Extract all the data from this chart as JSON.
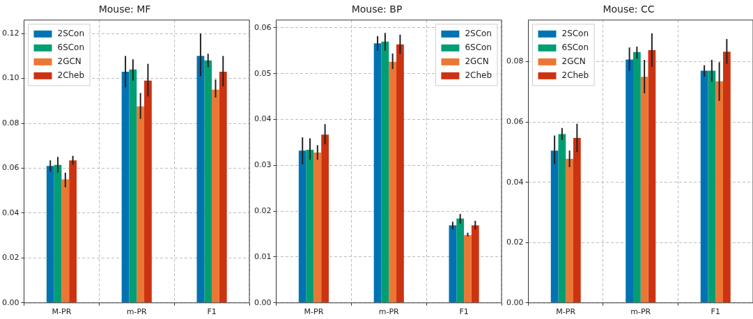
{
  "chart_data": [
    {
      "type": "bar",
      "title": "Mouse: MF",
      "categories": [
        "M-PR",
        "m-PR",
        "F1"
      ],
      "ylim": [
        0,
        0.126
      ],
      "yticks": [
        {
          "value": 0,
          "label": "0.00"
        },
        {
          "value": 0.02,
          "label": "0.02"
        },
        {
          "value": 0.04,
          "label": "0.04"
        },
        {
          "value": 0.06,
          "label": "0.06"
        },
        {
          "value": 0.08,
          "label": "0.08"
        },
        {
          "value": 0.1,
          "label": "0.10"
        },
        {
          "value": 0.12,
          "label": "0.12"
        }
      ],
      "grid": true,
      "legend": "top left",
      "series": [
        {
          "name": "2SCon",
          "color": "#0173b2",
          "values": [
            0.061,
            0.103,
            0.11
          ],
          "errors": [
            [
              0.0585,
              0.0635
            ],
            [
              0.096,
              0.11
            ],
            [
              0.101,
              0.12
            ]
          ]
        },
        {
          "name": "6SCon",
          "color": "#029e73",
          "values": [
            0.0615,
            0.104,
            0.108
          ],
          "errors": [
            [
              0.058,
              0.065
            ],
            [
              0.099,
              0.1085
            ],
            [
              0.105,
              0.111
            ]
          ]
        },
        {
          "name": "2GCN",
          "color": "#ec7734",
          "values": [
            0.055,
            0.0875,
            0.095
          ],
          "errors": [
            [
              0.0515,
              0.058
            ],
            [
              0.082,
              0.0935
            ],
            [
              0.0915,
              0.0995
            ]
          ]
        },
        {
          "name": "2Cheb",
          "color": "#cc3311",
          "values": [
            0.0635,
            0.099,
            0.103
          ],
          "errors": [
            [
              0.0615,
              0.0655
            ],
            [
              0.092,
              0.1065
            ],
            [
              0.0965,
              0.11
            ]
          ]
        }
      ]
    },
    {
      "type": "bar",
      "title": "Mouse: BP",
      "categories": [
        "M-PR",
        "m-PR",
        "F1"
      ],
      "ylim": [
        0,
        0.0617
      ],
      "yticks": [
        {
          "value": 0,
          "label": "0.00"
        },
        {
          "value": 0.01,
          "label": "0.01"
        },
        {
          "value": 0.02,
          "label": "0.02"
        },
        {
          "value": 0.03,
          "label": "0.03"
        },
        {
          "value": 0.04,
          "label": "0.04"
        },
        {
          "value": 0.05,
          "label": "0.05"
        },
        {
          "value": 0.06,
          "label": "0.06"
        }
      ],
      "grid": true,
      "legend": "top right",
      "series": [
        {
          "name": "2SCon",
          "color": "#0173b2",
          "values": [
            0.0332,
            0.0566,
            0.0169
          ],
          "errors": [
            [
              0.0302,
              0.0361
            ],
            [
              0.055,
              0.0582
            ],
            [
              0.016,
              0.0177
            ]
          ]
        },
        {
          "name": "6SCon",
          "color": "#029e73",
          "values": [
            0.0334,
            0.057,
            0.0184
          ],
          "errors": [
            [
              0.0312,
              0.0359
            ],
            [
              0.055,
              0.0589
            ],
            [
              0.0173,
              0.0194
            ]
          ]
        },
        {
          "name": "2GCN",
          "color": "#ec7734",
          "values": [
            0.0328,
            0.0526,
            0.0148
          ],
          "errors": [
            [
              0.0312,
              0.0344
            ],
            [
              0.051,
              0.0544
            ],
            [
              0.0145,
              0.0153
            ]
          ]
        },
        {
          "name": "2Cheb",
          "color": "#cc3311",
          "values": [
            0.0367,
            0.0564,
            0.0169
          ],
          "errors": [
            [
              0.0346,
              0.039
            ],
            [
              0.0543,
              0.0585
            ],
            [
              0.016,
              0.0179
            ]
          ]
        }
      ]
    },
    {
      "type": "bar",
      "title": "Mouse: CC",
      "categories": [
        "M-PR",
        "m-PR",
        "F1"
      ],
      "ylim": [
        0,
        0.0938
      ],
      "yticks": [
        {
          "value": 0,
          "label": "0.00"
        },
        {
          "value": 0.02,
          "label": "0.02"
        },
        {
          "value": 0.04,
          "label": "0.04"
        },
        {
          "value": 0.06,
          "label": "0.06"
        },
        {
          "value": 0.08,
          "label": "0.08"
        }
      ],
      "grid": true,
      "legend": "top left",
      "series": [
        {
          "name": "2SCon",
          "color": "#0173b2",
          "values": [
            0.0505,
            0.0807,
            0.077
          ],
          "errors": [
            [
              0.046,
              0.0555
            ],
            [
              0.077,
              0.0847
            ],
            [
              0.075,
              0.0788
            ]
          ]
        },
        {
          "name": "6SCon",
          "color": "#029e73",
          "values": [
            0.056,
            0.0832,
            0.077
          ],
          "errors": [
            [
              0.054,
              0.058
            ],
            [
              0.081,
              0.085
            ],
            [
              0.0733,
              0.0806
            ]
          ]
        },
        {
          "name": "2GCN",
          "color": "#ec7734",
          "values": [
            0.0478,
            0.075,
            0.0735
          ],
          "errors": [
            [
              0.045,
              0.0505
            ],
            [
              0.0695,
              0.0806
            ],
            [
              0.067,
              0.0798
            ]
          ]
        },
        {
          "name": "2Cheb",
          "color": "#cc3311",
          "values": [
            0.0547,
            0.0838,
            0.0833
          ],
          "errors": [
            [
              0.05,
              0.0594
            ],
            [
              0.0783,
              0.0894
            ],
            [
              0.0793,
              0.0875
            ]
          ]
        }
      ]
    }
  ]
}
